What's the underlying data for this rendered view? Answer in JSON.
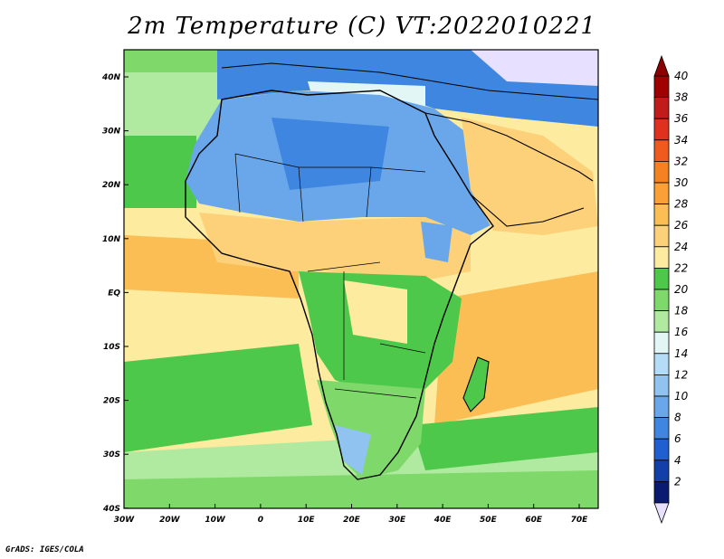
{
  "title": "2m Temperature (C) VT:2022010221",
  "footer": "GrADS: IGES/COLA",
  "map": {
    "x_ticks": [
      "30W",
      "20W",
      "10W",
      "0",
      "10E",
      "20E",
      "30E",
      "40E",
      "50E",
      "60E",
      "70E"
    ],
    "y_ticks": [
      "40N",
      "30N",
      "20N",
      "10N",
      "EQ",
      "10S",
      "20S",
      "30S",
      "40S"
    ]
  },
  "colorbar": {
    "labels": [
      "40",
      "38",
      "36",
      "34",
      "32",
      "30",
      "28",
      "26",
      "24",
      "22",
      "20",
      "18",
      "16",
      "14",
      "12",
      "10",
      "8",
      "6",
      "4",
      "2"
    ],
    "colors": [
      "#a00000",
      "#c21b1b",
      "#e0301e",
      "#f05a1e",
      "#f58220",
      "#faa037",
      "#fabe55",
      "#fdd17a",
      "#fdeba0",
      "#4ec84b",
      "#7fd86a",
      "#b0eaa0",
      "#e2f7f5",
      "#b5dcf7",
      "#90c3f0",
      "#6aa7ea",
      "#3f86e0",
      "#1f5fd0",
      "#1340a8",
      "#0a1a70"
    ],
    "top_color": "#8b0000",
    "bottom_color": "#e8e0ff"
  }
}
